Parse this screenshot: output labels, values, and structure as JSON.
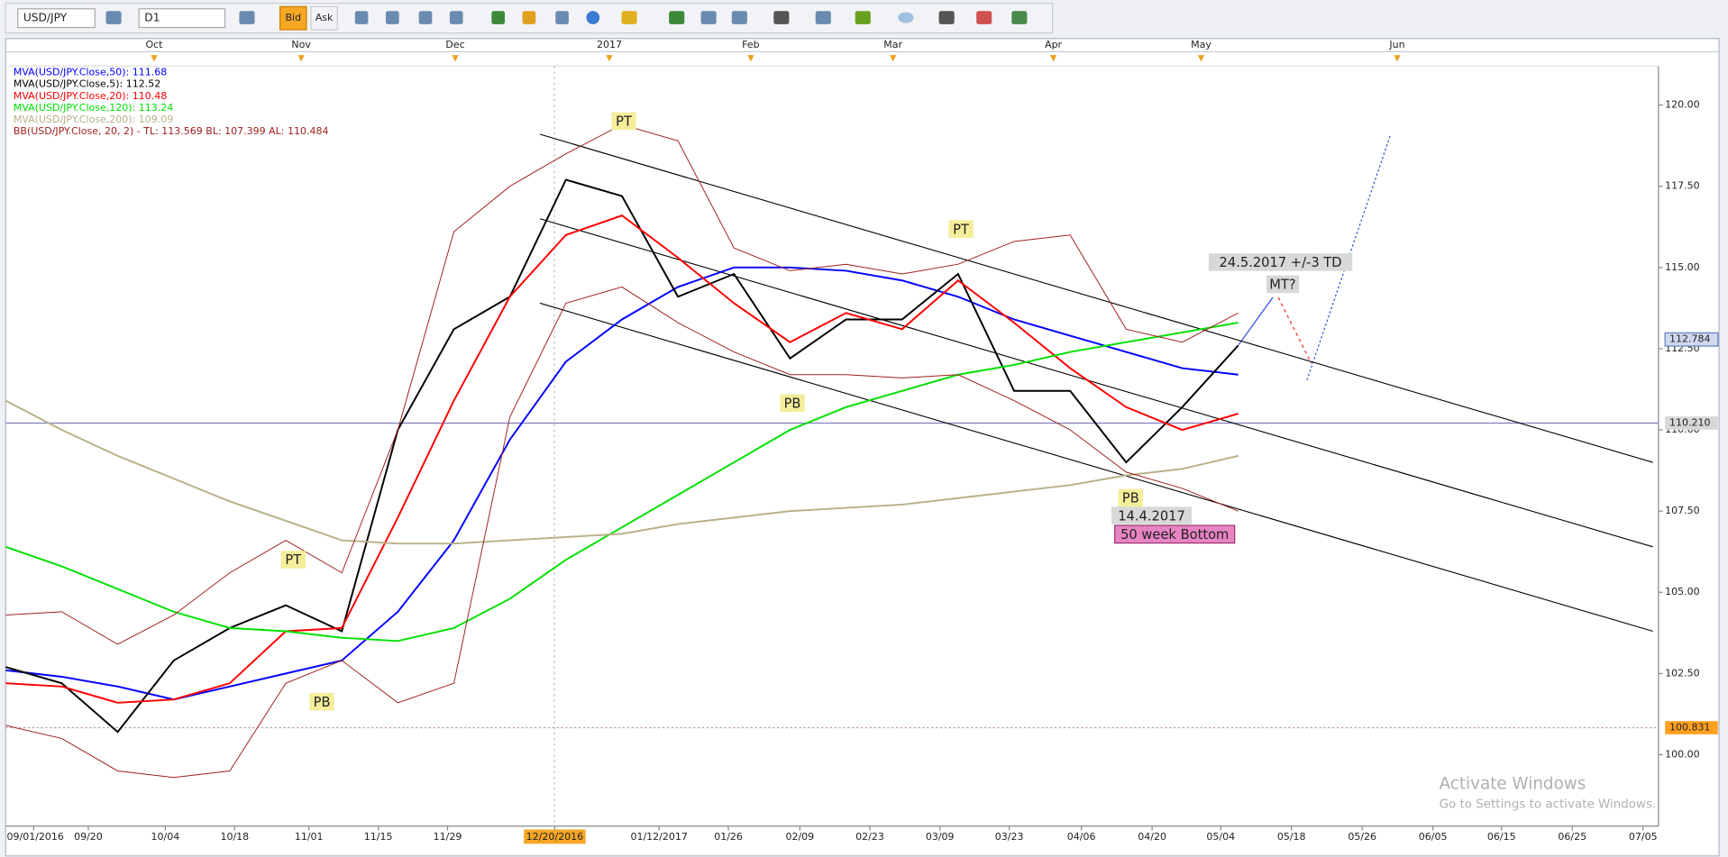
{
  "toolbar": {
    "symbol": "USD/JPY",
    "timeframe": "D1",
    "bid": "Bid",
    "ask": "Ask"
  },
  "chart_data": {
    "type": "line",
    "x": [
      0,
      8,
      16,
      24,
      32,
      40,
      48,
      56,
      64,
      72,
      80,
      88,
      96,
      104,
      112,
      120,
      128,
      136,
      144,
      152,
      160,
      168,
      176
    ],
    "xlim": [
      0,
      236
    ],
    "ylim": [
      97.8,
      121.2
    ],
    "yticks": [
      {
        "value": 100,
        "label": "100.00"
      },
      {
        "value": 102.5,
        "label": "102.50"
      },
      {
        "value": 105,
        "label": "105.00"
      },
      {
        "value": 107.5,
        "label": "107.50"
      },
      {
        "value": 110,
        "label": "110.00"
      },
      {
        "value": 112.5,
        "label": "112.50"
      },
      {
        "value": 115,
        "label": "115.00"
      },
      {
        "value": 117.5,
        "label": "117.50"
      },
      {
        "value": 120,
        "label": "120.00"
      }
    ],
    "xticks": [
      {
        "value": 4,
        "label": "09/01/2016"
      },
      {
        "value": 11.8,
        "label": "09/20"
      },
      {
        "value": 22.8,
        "label": "10/04"
      },
      {
        "value": 32.7,
        "label": "10/18"
      },
      {
        "value": 43.3,
        "label": "11/01"
      },
      {
        "value": 53.2,
        "label": "11/15"
      },
      {
        "value": 63.1,
        "label": "11/29"
      },
      {
        "value": 78.4,
        "label": "12/20/2016"
      },
      {
        "value": 93.3,
        "label": "01/12/2017"
      },
      {
        "value": 103.2,
        "label": "01/26"
      },
      {
        "value": 113.4,
        "label": "02/09"
      },
      {
        "value": 123.4,
        "label": "02/23"
      },
      {
        "value": 133.4,
        "label": "03/09"
      },
      {
        "value": 143.3,
        "label": "03/23"
      },
      {
        "value": 153.6,
        "label": "04/06"
      },
      {
        "value": 163.7,
        "label": "04/20"
      },
      {
        "value": 173.5,
        "label": "05/04"
      },
      {
        "value": 183.6,
        "label": "05/18"
      },
      {
        "value": 193.7,
        "label": "05/26"
      },
      {
        "value": 203.8,
        "label": "06/05"
      },
      {
        "value": 213.6,
        "label": "06/15"
      },
      {
        "value": 223.7,
        "label": "06/25"
      },
      {
        "value": 233.8,
        "label": "07/05"
      }
    ],
    "month_ticks": [
      {
        "value": 21.2,
        "label": "Oct"
      },
      {
        "value": 42.2,
        "label": "Nov"
      },
      {
        "value": 64.2,
        "label": "Dec"
      },
      {
        "value": 86.2,
        "label": "2017"
      },
      {
        "value": 106.4,
        "label": "Feb"
      },
      {
        "value": 126.7,
        "label": "Mar"
      },
      {
        "value": 149.6,
        "label": "Apr"
      },
      {
        "value": 170.7,
        "label": "May"
      },
      {
        "value": 198.7,
        "label": "Jun"
      }
    ],
    "series": [
      {
        "name": "MVA(USD/JPY.Close,50): 111.68",
        "color": "#0000ff",
        "values": [
          102.6,
          102.4,
          102.1,
          101.7,
          102.1,
          102.5,
          102.9,
          104.4,
          106.6,
          109.7,
          112.1,
          113.4,
          114.4,
          115.0,
          115.0,
          114.9,
          114.6,
          114.1,
          113.4,
          112.9,
          112.4,
          111.9,
          111.7
        ]
      },
      {
        "name": "MVA(USD/JPY.Close,5): 112.52",
        "color": "#000000",
        "values": [
          102.7,
          102.2,
          100.7,
          102.9,
          103.9,
          104.6,
          103.8,
          110.0,
          113.1,
          114.1,
          117.7,
          117.2,
          114.1,
          114.8,
          112.2,
          113.4,
          113.4,
          114.8,
          111.2,
          111.2,
          109.0,
          110.7,
          112.6
        ]
      },
      {
        "name": "MVA(USD/JPY.Close,20): 110.48",
        "color": "#ff0000",
        "values": [
          102.2,
          102.1,
          101.6,
          101.7,
          102.2,
          103.8,
          103.9,
          107.3,
          110.9,
          114.1,
          116.0,
          116.6,
          115.3,
          113.9,
          112.7,
          113.6,
          113.1,
          114.6,
          113.3,
          111.9,
          110.7,
          110.0,
          110.5
        ]
      },
      {
        "name": "MVA(USD/JPY.Close,120): 113.24",
        "color": "#00e000",
        "values": [
          106.4,
          105.8,
          105.1,
          104.4,
          103.9,
          103.8,
          103.6,
          103.5,
          103.9,
          104.8,
          106.0,
          107.0,
          108.0,
          109.0,
          110.0,
          110.7,
          111.2,
          111.7,
          112.0,
          112.4,
          112.7,
          113.0,
          113.3
        ]
      },
      {
        "name": "MVA(USD/JPY.Close,200): 109.09",
        "color": "#b8b088",
        "values": [
          110.9,
          110.0,
          109.2,
          108.5,
          107.8,
          107.2,
          106.6,
          106.5,
          106.5,
          106.6,
          106.7,
          106.8,
          107.1,
          107.3,
          107.5,
          107.6,
          107.7,
          107.9,
          108.1,
          108.3,
          108.6,
          108.8,
          109.2
        ]
      },
      {
        "name": "BB(USD/JPY.Close, 20, 2) -   TL: 113.569  BL: 107.399  AL: 110.484",
        "color": "#a02020",
        "values": [
          104.3,
          104.4,
          103.4,
          104.3,
          105.6,
          106.6,
          105.6,
          110.0,
          116.1,
          117.5,
          118.5,
          119.4,
          118.9,
          115.6,
          114.9,
          115.1,
          114.8,
          115.1,
          115.8,
          116.0,
          113.1,
          112.7,
          113.6
        ]
      },
      {
        "color": "#a02020",
        "values": [
          100.9,
          100.5,
          99.5,
          99.3,
          99.5,
          102.2,
          102.9,
          101.6,
          102.2,
          110.4,
          113.9,
          114.4,
          113.3,
          112.4,
          111.7,
          111.7,
          111.6,
          111.7,
          110.9,
          110.0,
          108.7,
          108.2,
          107.5
        ]
      }
    ],
    "trendlines": [
      {
        "x": [
          76.3,
          235.2
        ],
        "values": [
          119.1,
          109.0
        ]
      },
      {
        "x": [
          76.3,
          235.2
        ],
        "values": [
          116.5,
          106.4
        ]
      },
      {
        "x": [
          76.3,
          235.2
        ],
        "values": [
          113.9,
          103.8
        ]
      }
    ],
    "hlines": [
      {
        "value": 110.21,
        "label": "110.210",
        "color": "#8080c0",
        "tag": "#d8d8d8"
      },
      {
        "value": 100.831,
        "label": "100.831",
        "color": "#c0a0a0",
        "tag": "#ffa020"
      }
    ],
    "price_tag": {
      "value": 112.784,
      "label": "112.784"
    },
    "annotations": [
      "PT",
      "PT",
      "PT",
      "PB",
      "PB",
      "PB",
      "24.5.2017 +/-3 TD",
      "MT?",
      "14.4.2017",
      "50 week Bottom"
    ],
    "watermark": [
      "Activate Windows",
      "Go to Settings to activate Windows."
    ]
  }
}
